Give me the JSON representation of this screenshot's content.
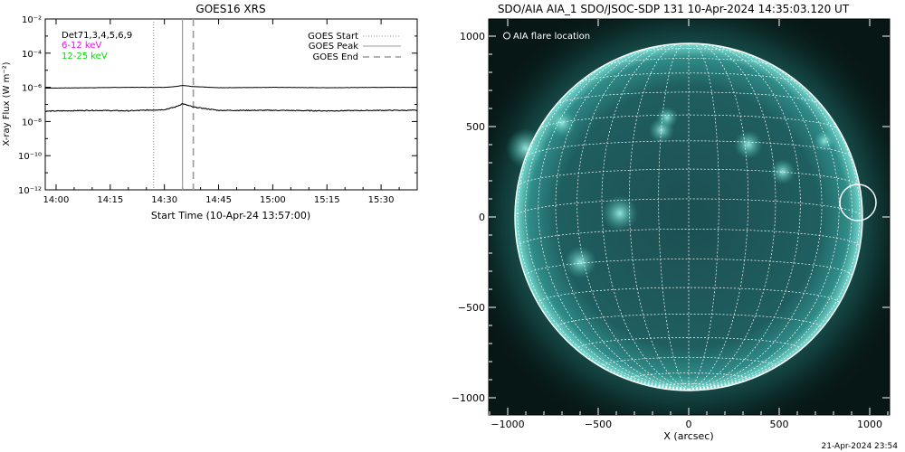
{
  "goes_panel": {
    "title": "GOES16 XRS",
    "ylabel": "X-ray Flux (W m⁻²)",
    "xlabel": "Start Time (10-Apr-24 13:57:00)",
    "detectors_text": "Det71,3,4,5,6,9",
    "legend_low_band": "6-12 keV",
    "legend_high_band": "12-25 keV",
    "legend_start": "GOES Start",
    "legend_peak": "GOES Peak",
    "legend_end": "GOES End",
    "colors": {
      "low_band": "#ff00ff",
      "high_band": "#00dd00",
      "trace": "#000000",
      "marker": "#999999"
    }
  },
  "aia_panel": {
    "title": "SDO/AIA AIA_1 SDO/JSOC-SDP 131 10-Apr-2024 14:35:03.120 UT",
    "flare_location_label": "AIA flare location",
    "xlabel": "X (arcsec)",
    "colors": {
      "disk": "#1a5a58",
      "grid": "#ffffff",
      "circle": "#ffffff"
    }
  },
  "footer": {
    "timestamp": "21-Apr-2024 23:54"
  },
  "chart_data": [
    {
      "type": "line",
      "title": "GOES16 XRS",
      "xlabel": "Start Time (10-Apr-24 13:57:00)",
      "ylabel": "X-ray Flux (W m⁻²)",
      "y_scale": "log",
      "ylim": [
        1e-12,
        0.01
      ],
      "xlim": [
        "13:57",
        "15:40"
      ],
      "x_ticks": [
        "14:00",
        "14:15",
        "14:30",
        "14:45",
        "15:00",
        "15:15",
        "15:30"
      ],
      "y_ticks": [
        "10⁻¹²",
        "10⁻¹⁰",
        "10⁻⁸",
        "10⁻⁶",
        "10⁻⁴",
        "10⁻²"
      ],
      "series": [
        {
          "name": "6-12 keV",
          "x": [
            "13:57",
            "14:10",
            "14:20",
            "14:30",
            "14:33",
            "14:35",
            "14:38",
            "14:45",
            "15:00",
            "15:15",
            "15:30",
            "15:40"
          ],
          "y": [
            9e-07,
            9.5e-07,
            1e-06,
            1e-06,
            1.1e-06,
            1.3e-06,
            1.1e-06,
            9.5e-07,
            1e-06,
            9.5e-07,
            1e-06,
            1e-06
          ]
        },
        {
          "name": "12-25 keV",
          "x": [
            "13:57",
            "14:10",
            "14:20",
            "14:30",
            "14:33",
            "14:35",
            "14:38",
            "14:45",
            "15:00",
            "15:15",
            "15:30",
            "15:40"
          ],
          "y": [
            4e-08,
            4.5e-08,
            4.2e-08,
            5e-08,
            7e-08,
            1.1e-07,
            7e-08,
            4.5e-08,
            4.5e-08,
            4.2e-08,
            4.5e-08,
            4.5e-08
          ]
        }
      ],
      "markers": [
        {
          "name": "GOES Start",
          "x": "14:27",
          "style": "dotted"
        },
        {
          "name": "GOES Peak",
          "x": "14:35",
          "style": "solid"
        },
        {
          "name": "GOES End",
          "x": "14:38",
          "style": "dashed"
        }
      ],
      "legend_position": "top-right",
      "grid": false
    },
    {
      "type": "scatter",
      "title": "SDO/AIA AIA_1 SDO/JSOC-SDP 131 10-Apr-2024 14:35:03.120 UT",
      "xlabel": "X (arcsec)",
      "ylabel": "",
      "xlim": [
        -1100,
        1100
      ],
      "ylim": [
        -1100,
        1100
      ],
      "x_ticks": [
        "−1000",
        "−500",
        "0",
        "500",
        "1000"
      ],
      "y_ticks": [
        "−1000",
        "−500",
        "0",
        "500",
        "1000"
      ],
      "solar_radius_arcsec": 960,
      "series": [
        {
          "name": "AIA flare location",
          "x": [
            935
          ],
          "y": [
            80
          ]
        }
      ],
      "grid": true,
      "legend_position": "top-left"
    }
  ]
}
